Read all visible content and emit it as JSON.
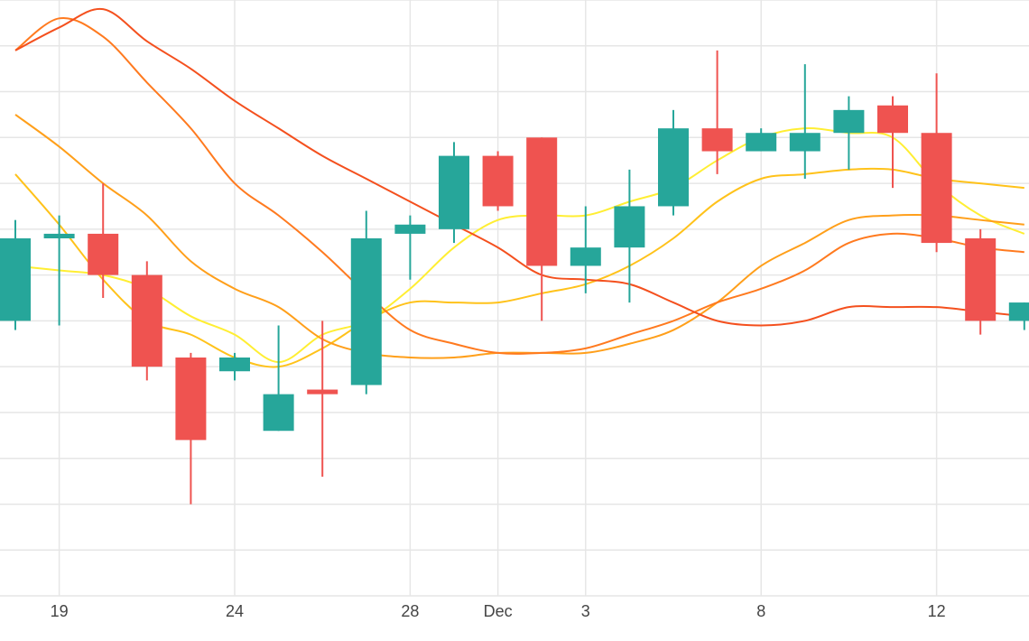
{
  "chart_data": {
    "type": "candlestick",
    "title": "",
    "xlabel": "",
    "ylabel": "",
    "grid": true,
    "colors": {
      "up": "#26a69a",
      "down": "#ef5350",
      "grid": "#e6e6e6",
      "ma_lines": [
        "#ffee33",
        "#ffc21a",
        "#ff9f1a",
        "#ff7a1f",
        "#f4501e"
      ]
    },
    "x_ticks": [
      {
        "label": "19",
        "index": 1
      },
      {
        "label": "24",
        "index": 5
      },
      {
        "label": "28",
        "index": 9
      },
      {
        "label": "Dec",
        "index": 11
      },
      {
        "label": "3",
        "index": 13
      },
      {
        "label": "8",
        "index": 17
      },
      {
        "label": "12",
        "index": 21
      }
    ],
    "ylim": [
      0,
      13
    ],
    "candles": [
      {
        "open": 6.0,
        "close": 7.8,
        "high": 8.2,
        "low": 5.8
      },
      {
        "open": 7.8,
        "close": 7.9,
        "high": 8.3,
        "low": 5.9
      },
      {
        "open": 7.9,
        "close": 7.0,
        "high": 9.0,
        "low": 6.5
      },
      {
        "open": 7.0,
        "close": 5.0,
        "high": 7.3,
        "low": 4.7
      },
      {
        "open": 5.2,
        "close": 3.4,
        "high": 5.3,
        "low": 2.0
      },
      {
        "open": 4.9,
        "close": 5.2,
        "high": 5.3,
        "low": 4.7
      },
      {
        "open": 3.6,
        "close": 4.4,
        "high": 5.9,
        "low": 3.6
      },
      {
        "open": 4.5,
        "close": 4.4,
        "high": 6.0,
        "low": 2.6
      },
      {
        "open": 4.6,
        "close": 7.8,
        "high": 8.4,
        "low": 4.4
      },
      {
        "open": 7.9,
        "close": 8.1,
        "high": 8.3,
        "low": 6.9
      },
      {
        "open": 8.0,
        "close": 9.6,
        "high": 9.9,
        "low": 7.7
      },
      {
        "open": 9.6,
        "close": 8.5,
        "high": 9.7,
        "low": 8.4
      },
      {
        "open": 10.0,
        "close": 7.2,
        "high": 10.0,
        "low": 6.0
      },
      {
        "open": 7.2,
        "close": 7.6,
        "high": 8.5,
        "low": 6.6
      },
      {
        "open": 7.6,
        "close": 8.5,
        "high": 9.3,
        "low": 6.4
      },
      {
        "open": 8.5,
        "close": 10.2,
        "high": 10.6,
        "low": 8.3
      },
      {
        "open": 10.2,
        "close": 9.7,
        "high": 11.9,
        "low": 9.2
      },
      {
        "open": 9.7,
        "close": 10.1,
        "high": 10.2,
        "low": 9.7
      },
      {
        "open": 9.7,
        "close": 10.1,
        "high": 11.6,
        "low": 9.1
      },
      {
        "open": 10.1,
        "close": 10.6,
        "high": 10.9,
        "low": 9.3
      },
      {
        "open": 10.7,
        "close": 10.1,
        "high": 10.9,
        "low": 8.9
      },
      {
        "open": 10.1,
        "close": 7.7,
        "high": 11.4,
        "low": 7.5
      },
      {
        "open": 7.8,
        "close": 6.0,
        "high": 8.0,
        "low": 5.7
      },
      {
        "open": 6.0,
        "close": 6.4,
        "high": 6.4,
        "low": 5.8
      }
    ],
    "series": [
      {
        "color": "#ffee33",
        "values": [
          7.2,
          7.1,
          7.0,
          6.7,
          6.1,
          5.7,
          5.1,
          5.7,
          6.0,
          6.7,
          7.6,
          8.2,
          8.3,
          8.3,
          8.6,
          8.9,
          9.5,
          10.0,
          10.2,
          10.1,
          10.0,
          9.0,
          8.3,
          7.9
        ]
      },
      {
        "color": "#ffc21a",
        "values": [
          9.2,
          8.1,
          6.9,
          6.0,
          5.7,
          5.2,
          5.0,
          5.4,
          6.0,
          6.4,
          6.4,
          6.4,
          6.6,
          6.8,
          7.2,
          7.8,
          8.6,
          9.1,
          9.2,
          9.3,
          9.3,
          9.1,
          9.0,
          8.9
        ]
      },
      {
        "color": "#ff9f1a",
        "values": [
          10.5,
          9.8,
          9.0,
          8.3,
          7.3,
          6.7,
          6.3,
          5.6,
          5.3,
          5.2,
          5.2,
          5.3,
          5.3,
          5.3,
          5.5,
          5.8,
          6.4,
          7.2,
          7.7,
          8.2,
          8.3,
          8.3,
          8.2,
          8.1
        ]
      },
      {
        "color": "#ff7a1f",
        "values": [
          11.9,
          12.6,
          12.2,
          11.2,
          10.2,
          9.0,
          8.3,
          7.5,
          6.6,
          5.8,
          5.5,
          5.3,
          5.3,
          5.4,
          5.7,
          6.0,
          6.4,
          6.7,
          7.1,
          7.7,
          7.9,
          7.8,
          7.6,
          7.5
        ]
      },
      {
        "color": "#f4501e",
        "values": [
          11.9,
          12.4,
          12.8,
          12.1,
          11.5,
          10.8,
          10.2,
          9.6,
          9.1,
          8.6,
          8.1,
          7.6,
          7.0,
          6.9,
          6.8,
          6.4,
          6.0,
          5.9,
          6.0,
          6.3,
          6.3,
          6.3,
          6.2,
          6.1
        ]
      }
    ]
  }
}
